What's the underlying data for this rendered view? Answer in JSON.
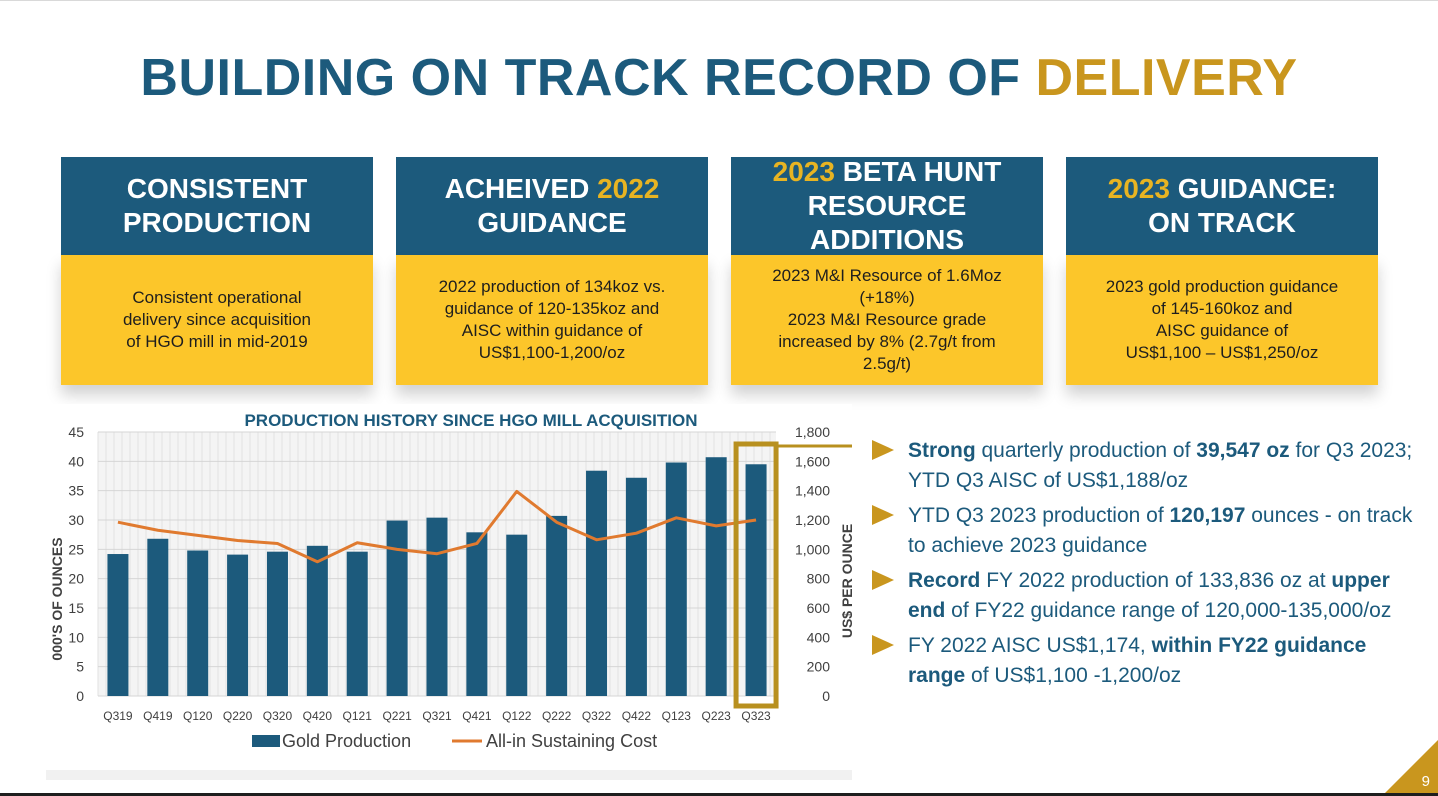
{
  "title": {
    "part1": "BUILDING ON TRACK RECORD OF ",
    "part2": "DELIVERY"
  },
  "cards": [
    {
      "head_pre": "CONSISTENT",
      "head_year": "",
      "head_post": "PRODUCTION",
      "body": "Consistent operational\ndelivery since acquisition\nof HGO mill in mid-2019"
    },
    {
      "head_pre": "ACHEIVED",
      "head_year": "2022",
      "head_post": "GUIDANCE",
      "body": "2022 production of 134koz vs.\nguidance of 120-135koz and\nAISC within guidance of\nUS$1,100-1,200/oz"
    },
    {
      "head_pre": "",
      "head_year": "2023",
      "head_post": "BETA HUNT\nRESOURCE ADDITIONS",
      "body": "2023 M&I Resource of 1.6Moz\n(+18%)\n2023 M&I Resource grade\nincreased by 8% (2.7g/t from\n2.5g/t)"
    },
    {
      "head_pre": "",
      "head_year": "2023",
      "head_post": "GUIDANCE:\nON TRACK",
      "body": "2023 gold production guidance\nof 145-160koz and\nAISC guidance of\nUS$1,100 – US$1,250/oz"
    }
  ],
  "chart_data": {
    "type": "bar",
    "title": "PRODUCTION HISTORY SINCE HGO MILL ACQUISITION",
    "categories": [
      "Q319",
      "Q419",
      "Q120",
      "Q220",
      "Q320",
      "Q420",
      "Q121",
      "Q221",
      "Q321",
      "Q421",
      "Q122",
      "Q222",
      "Q322",
      "Q422",
      "Q123",
      "Q223",
      "Q323"
    ],
    "series": [
      {
        "name": "Gold Production",
        "type": "bar",
        "axis": "left",
        "color": "#1c5a7c",
        "values": [
          24.2,
          26.8,
          24.8,
          24.1,
          24.6,
          25.6,
          24.6,
          29.9,
          30.4,
          27.9,
          27.5,
          30.7,
          38.4,
          37.2,
          39.8,
          40.7,
          39.5
        ]
      },
      {
        "name": "All-in Sustaining Cost",
        "type": "line",
        "axis": "right",
        "color": "#e07a2f",
        "values": [
          1185,
          1130,
          1095,
          1060,
          1040,
          915,
          1045,
          1000,
          970,
          1040,
          1395,
          1185,
          1065,
          1110,
          1215,
          1160,
          1200
        ]
      }
    ],
    "ylabel": "000'S OF OUNCES",
    "ylabel_right": "US$ PER OUNCE",
    "ylim": [
      0,
      45
    ],
    "ylim_right": [
      0,
      1800
    ],
    "yticks": [
      "0",
      "5",
      "10",
      "15",
      "20",
      "25",
      "30",
      "35",
      "40",
      "45"
    ],
    "yticks_right": [
      "0",
      "200",
      "400",
      "600",
      "800",
      "1,000",
      "1,200",
      "1,400",
      "1,600",
      "1,800"
    ],
    "highlight_category": "Q323",
    "highlight_color": "#b8901f",
    "grid": true,
    "legend": "bottom"
  },
  "bullets": [
    [
      {
        "b": "Strong"
      },
      {
        "t": " quarterly production of "
      },
      {
        "b": "39,547 oz"
      },
      {
        "t": " for Q3 2023; YTD Q3 AISC of US$1,188/oz"
      }
    ],
    [
      {
        "t": "YTD Q3 2023 production of "
      },
      {
        "b": "120,197"
      },
      {
        "t": " ounces - on track to achieve 2023 guidance"
      }
    ],
    [
      {
        "b": "Record"
      },
      {
        "t": " FY 2022 production of 133,836 oz at "
      },
      {
        "b": "upper end"
      },
      {
        "t": " of FY22 guidance range of 120,000-135,000/oz"
      }
    ],
    [
      {
        "t": "FY 2022 AISC US$1,174, "
      },
      {
        "b": "within FY22 guidance range"
      },
      {
        "t": " of US$1,100 -1,200/oz"
      }
    ]
  ],
  "page_number": "9"
}
